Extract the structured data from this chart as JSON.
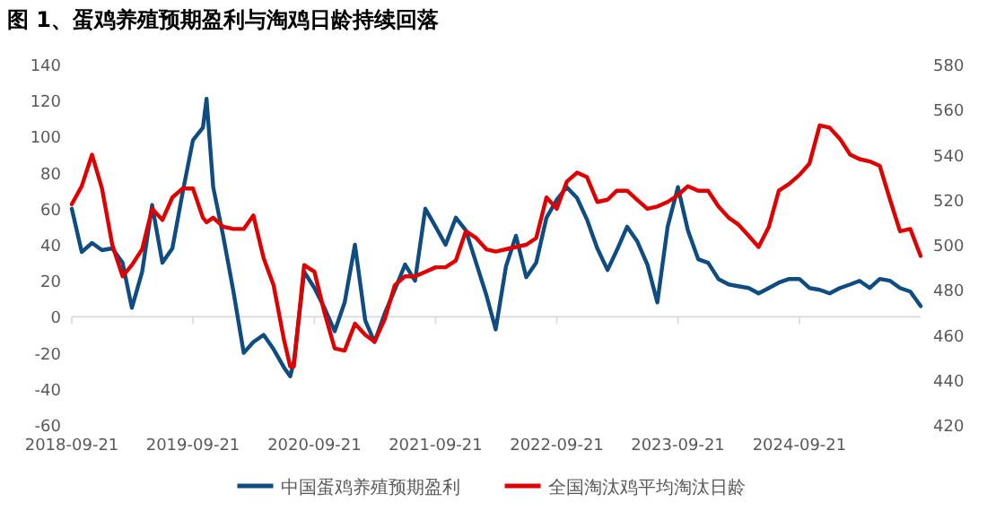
{
  "chart_data": {
    "type": "line",
    "title": "图 1、蛋鸡养殖预期盈利与淘鸡日龄持续回落",
    "x": [
      "2018-09-21",
      "2018-10-21",
      "2018-11-21",
      "2018-12-21",
      "2019-01-21",
      "2019-02-21",
      "2019-03-21",
      "2019-04-21",
      "2019-05-21",
      "2019-06-21",
      "2019-07-21",
      "2019-08-21",
      "2019-09-21",
      "2019-10-21",
      "2019-11-01",
      "2019-11-21",
      "2019-12-21",
      "2020-01-21",
      "2020-02-21",
      "2020-03-21",
      "2020-04-21",
      "2020-05-21",
      "2020-06-21",
      "2020-07-10",
      "2020-07-21",
      "2020-08-21",
      "2020-09-21",
      "2020-10-21",
      "2020-11-21",
      "2020-12-21",
      "2021-01-21",
      "2021-02-21",
      "2021-03-21",
      "2021-04-21",
      "2021-05-21",
      "2021-06-21",
      "2021-07-21",
      "2021-08-21",
      "2021-09-21",
      "2021-10-21",
      "2021-11-21",
      "2021-12-21",
      "2022-01-21",
      "2022-02-21",
      "2022-03-21",
      "2022-04-21",
      "2022-05-21",
      "2022-06-21",
      "2022-07-21",
      "2022-08-21",
      "2022-09-21",
      "2022-10-21",
      "2022-11-21",
      "2022-12-21",
      "2023-01-21",
      "2023-02-21",
      "2023-03-21",
      "2023-04-21",
      "2023-05-21",
      "2023-06-21",
      "2023-07-21",
      "2023-08-21",
      "2023-09-21",
      "2023-10-21",
      "2023-11-21",
      "2023-12-21",
      "2024-01-21",
      "2024-02-21",
      "2024-03-21",
      "2024-04-21",
      "2024-05-21",
      "2024-06-21",
      "2024-07-21",
      "2024-08-21",
      "2024-09-21",
      "2024-10-21",
      "2024-11-21",
      "2024-12-21",
      "2025-01-21",
      "2025-02-21",
      "2025-03-21",
      "2025-04-21",
      "2025-05-21",
      "2025-06-21",
      "2025-07-21",
      "2025-08-21",
      "2025-09-21"
    ],
    "series": [
      {
        "name": "中国蛋鸡养殖预期盈利",
        "color": "#0f4c81",
        "values": [
          60,
          36,
          41,
          37,
          38,
          30,
          5,
          25,
          62,
          30,
          38,
          69,
          98,
          105,
          121,
          72,
          45,
          14,
          -20,
          -14,
          -10,
          -18,
          -28,
          -33,
          -25,
          25,
          16,
          5,
          -8,
          8,
          40,
          -2,
          -14,
          2,
          15,
          29,
          20,
          60,
          50,
          40,
          55,
          48,
          30,
          12,
          -7,
          28,
          45,
          22,
          30,
          55,
          65,
          72,
          66,
          54,
          38,
          26,
          37,
          50,
          42,
          29,
          8,
          50,
          72,
          48,
          32,
          30,
          21,
          18,
          17,
          16,
          13,
          16,
          19,
          21,
          21,
          16,
          15,
          13,
          16,
          18,
          20,
          16,
          21,
          20,
          16,
          14,
          6
        ]
      },
      {
        "name": "全国淘汰鸡平均淘汰日龄",
        "color": "#e00000",
        "axis": "y2",
        "values": [
          518,
          526,
          540,
          525,
          500,
          486,
          491,
          498,
          516,
          511,
          521,
          525,
          525,
          512,
          510,
          512,
          508,
          507,
          507,
          513,
          494,
          482,
          458,
          446,
          446,
          491,
          488,
          470,
          454,
          453,
          465,
          460,
          457,
          467,
          482,
          486,
          486,
          488,
          490,
          490,
          493,
          506,
          503,
          498,
          497,
          498,
          499,
          500,
          503,
          521,
          516,
          528,
          532,
          530,
          519,
          520,
          524,
          524,
          520,
          516,
          517,
          519,
          522,
          526,
          524,
          524,
          517,
          512,
          509,
          504,
          499,
          508,
          524,
          527,
          531,
          536,
          553,
          552,
          547,
          540,
          538,
          537,
          535,
          520,
          506,
          507,
          495
        ]
      }
    ],
    "xlim": [
      "2018-09-21",
      "2025-09-21"
    ],
    "xticks": [
      "2018-09-21",
      "2019-09-21",
      "2020-09-21",
      "2021-09-21",
      "2022-09-21",
      "2023-09-21",
      "2024-09-21"
    ],
    "ylim": [
      -60,
      140
    ],
    "yticks": [
      -60,
      -40,
      -20,
      0,
      20,
      40,
      60,
      80,
      100,
      120,
      140
    ],
    "y2lim": [
      420,
      580
    ],
    "y2ticks": [
      420,
      440,
      460,
      480,
      500,
      520,
      540,
      560,
      580
    ],
    "legend": "bottom",
    "marker": "none",
    "line_style": "solid"
  }
}
